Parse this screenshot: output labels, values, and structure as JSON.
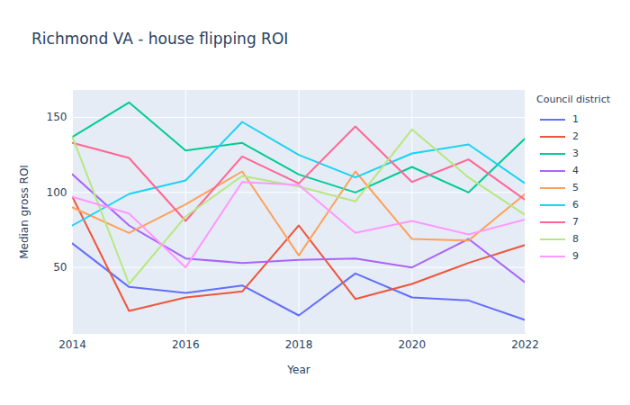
{
  "chart_data": {
    "type": "line",
    "title": "Richmond VA - house flipping ROI",
    "x_label": "Year",
    "y_label": "Median gross ROI",
    "legend_title": "Council district",
    "legend": "right",
    "grid": true,
    "x": [
      2014,
      2015,
      2016,
      2017,
      2018,
      2019,
      2020,
      2021,
      2022
    ],
    "xlim": [
      2014,
      2022
    ],
    "xticks": [
      2014,
      2016,
      2018,
      2020,
      2022
    ],
    "ylim": [
      6,
      168
    ],
    "yticks": [
      50,
      100,
      150
    ],
    "series": [
      {
        "name": "1",
        "color": "#636efa",
        "values": [
          66,
          37,
          33,
          38,
          18,
          46,
          30,
          28,
          15
        ]
      },
      {
        "name": "2",
        "color": "#EF553B",
        "values": [
          97,
          21,
          30,
          34,
          78,
          29,
          39,
          53,
          65
        ]
      },
      {
        "name": "3",
        "color": "#00cc96",
        "values": [
          137,
          160,
          128,
          133,
          112,
          100,
          117,
          100,
          136
        ]
      },
      {
        "name": "4",
        "color": "#ab63fa",
        "values": [
          112,
          78,
          56,
          53,
          55,
          56,
          50,
          69,
          40
        ]
      },
      {
        "name": "5",
        "color": "#FFA15A",
        "values": [
          90,
          73,
          92,
          114,
          58,
          114,
          69,
          68,
          99
        ]
      },
      {
        "name": "6",
        "color": "#19d3f3",
        "values": [
          78,
          99,
          108,
          147,
          125,
          110,
          126,
          132,
          106
        ]
      },
      {
        "name": "7",
        "color": "#FF6692",
        "values": [
          133,
          123,
          81,
          124,
          106,
          144,
          107,
          122,
          95
        ]
      },
      {
        "name": "8",
        "color": "#B6E880",
        "values": [
          137,
          39,
          84,
          111,
          104,
          94,
          142,
          110,
          85
        ]
      },
      {
        "name": "9",
        "color": "#FF97FF",
        "values": [
          97,
          86,
          50,
          107,
          105,
          73,
          81,
          72,
          82
        ]
      }
    ]
  }
}
